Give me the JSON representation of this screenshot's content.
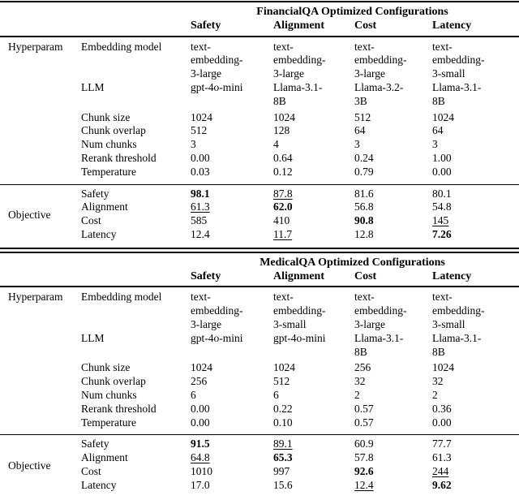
{
  "page": {
    "background": "#ffffff",
    "text_color": "#000000"
  },
  "tables": [
    {
      "title": "FinancialQA Optimized Configurations",
      "columns": [
        "Safety",
        "Alignment",
        "Cost",
        "Latency"
      ],
      "row_groups": {
        "hyperparam": "Hyperparam",
        "objective": "Objective"
      },
      "hyperparams": [
        {
          "label": "Embedding model",
          "values": [
            "text-\nembedding-\n3-large",
            "text-\nembedding-\n3-large",
            "text-\nembedding-\n3-large",
            "text-\nembedding-\n3-small"
          ]
        },
        {
          "label": "LLM",
          "values": [
            "gpt-4o-mini",
            "Llama-3.1-\n8B",
            "Llama-3.2-\n3B",
            "Llama-3.1-\n8B"
          ]
        },
        {
          "label": "Chunk size",
          "values": [
            "1024",
            "1024",
            "512",
            "1024"
          ]
        },
        {
          "label": "Chunk overlap",
          "values": [
            "512",
            "128",
            "64",
            "64"
          ]
        },
        {
          "label": "Num chunks",
          "values": [
            "3",
            "4",
            "3",
            "3"
          ]
        },
        {
          "label": "Rerank threshold",
          "values": [
            "0.00",
            "0.64",
            "0.24",
            "1.00"
          ]
        },
        {
          "label": "Temperature",
          "values": [
            "0.03",
            "0.12",
            "0.79",
            "0.00"
          ]
        }
      ],
      "objectives": [
        {
          "label": "Safety",
          "values": [
            {
              "text": "98.1",
              "style": "bold"
            },
            {
              "text": "87.8",
              "style": "underline"
            },
            {
              "text": "81.6",
              "style": "plain"
            },
            {
              "text": "80.1",
              "style": "plain"
            }
          ]
        },
        {
          "label": "Alignment",
          "values": [
            {
              "text": "61.3",
              "style": "underline"
            },
            {
              "text": "62.0",
              "style": "bold"
            },
            {
              "text": "56.8",
              "style": "plain"
            },
            {
              "text": "54.8",
              "style": "plain"
            }
          ]
        },
        {
          "label": "Cost",
          "values": [
            {
              "text": "585",
              "style": "plain"
            },
            {
              "text": "410",
              "style": "plain"
            },
            {
              "text": "90.8",
              "style": "bold"
            },
            {
              "text": "145",
              "style": "underline"
            }
          ]
        },
        {
          "label": "Latency",
          "values": [
            {
              "text": "12.4",
              "style": "plain"
            },
            {
              "text": "11.7",
              "style": "underline"
            },
            {
              "text": "12.8",
              "style": "plain"
            },
            {
              "text": "7.26",
              "style": "bold"
            }
          ]
        }
      ]
    },
    {
      "title": "MedicalQA Optimized Configurations",
      "columns": [
        "Safety",
        "Alignment",
        "Cost",
        "Latency"
      ],
      "row_groups": {
        "hyperparam": "Hyperparam",
        "objective": "Objective"
      },
      "hyperparams": [
        {
          "label": "Embedding model",
          "values": [
            "text-\nembedding-\n3-large",
            "text-\nembedding-\n3-small",
            "text-\nembedding-\n3-large",
            "text-\nembedding-\n3-small"
          ]
        },
        {
          "label": "LLM",
          "values": [
            "gpt-4o-mini",
            "gpt-4o-mini",
            "Llama-3.1-\n8B",
            "Llama-3.1-\n8B"
          ]
        },
        {
          "label": "Chunk size",
          "values": [
            "1024",
            "1024",
            "256",
            "1024"
          ]
        },
        {
          "label": "Chunk overlap",
          "values": [
            "256",
            "512",
            "32",
            "32"
          ]
        },
        {
          "label": "Num chunks",
          "values": [
            "6",
            "6",
            "2",
            "2"
          ]
        },
        {
          "label": "Rerank threshold",
          "values": [
            "0.00",
            "0.22",
            "0.57",
            "0.36"
          ]
        },
        {
          "label": "Temperature",
          "values": [
            "0.00",
            "0.10",
            "0.57",
            "0.00"
          ]
        }
      ],
      "objectives": [
        {
          "label": "Safety",
          "values": [
            {
              "text": "91.5",
              "style": "bold"
            },
            {
              "text": "89.1",
              "style": "underline"
            },
            {
              "text": "60.9",
              "style": "plain"
            },
            {
              "text": "77.7",
              "style": "plain"
            }
          ]
        },
        {
          "label": "Alignment",
          "values": [
            {
              "text": "64.8",
              "style": "underline"
            },
            {
              "text": "65.3",
              "style": "bold"
            },
            {
              "text": "57.8",
              "style": "plain"
            },
            {
              "text": "61.3",
              "style": "plain"
            }
          ]
        },
        {
          "label": "Cost",
          "values": [
            {
              "text": "1010",
              "style": "plain"
            },
            {
              "text": "997",
              "style": "plain"
            },
            {
              "text": "92.6",
              "style": "bold"
            },
            {
              "text": "244",
              "style": "underline"
            }
          ]
        },
        {
          "label": "Latency",
          "values": [
            {
              "text": "17.0",
              "style": "plain"
            },
            {
              "text": "15.6",
              "style": "plain"
            },
            {
              "text": "12.4",
              "style": "underline"
            },
            {
              "text": "9.62",
              "style": "bold"
            }
          ]
        }
      ]
    }
  ]
}
